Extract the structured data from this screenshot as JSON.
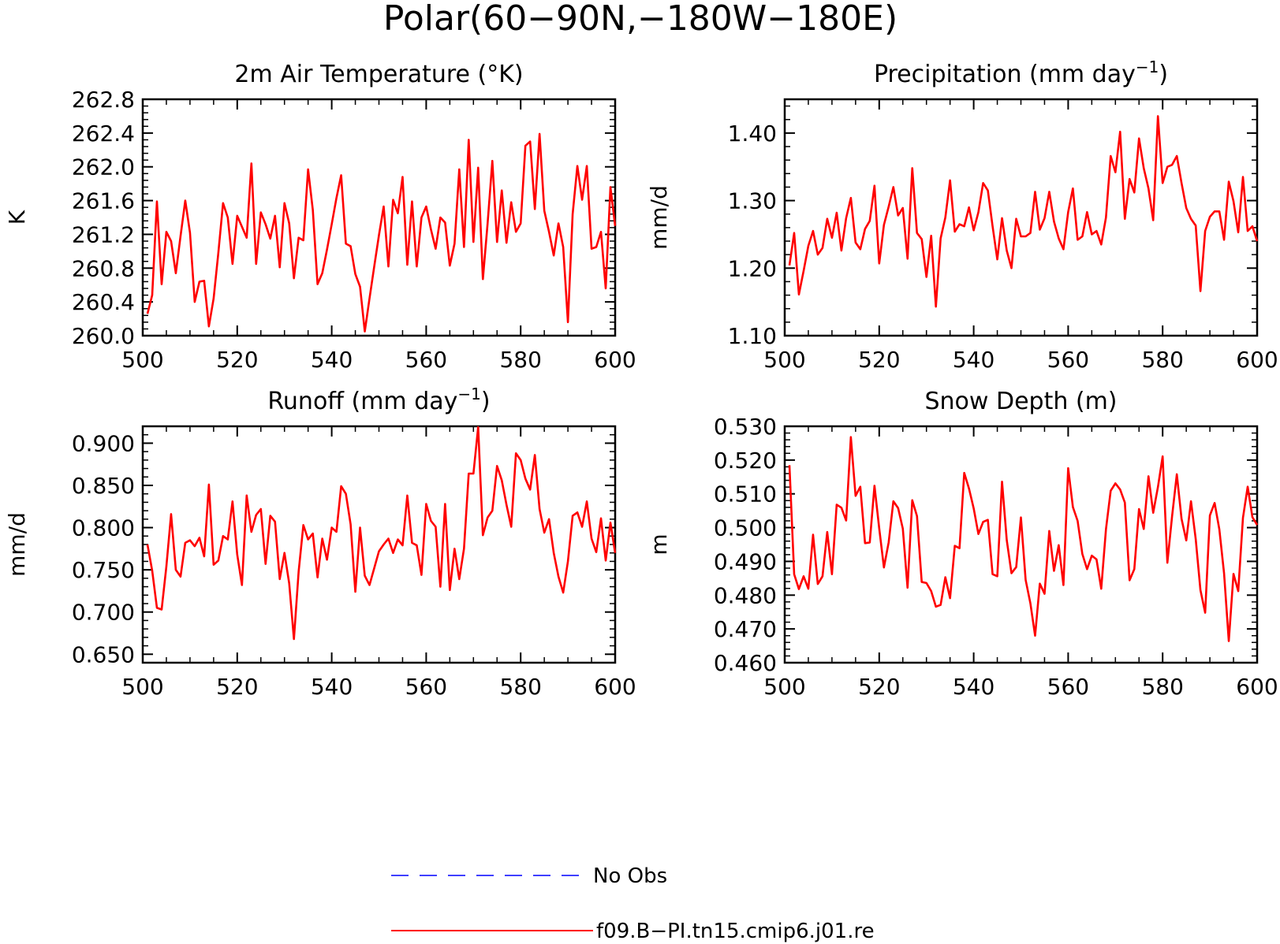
{
  "figure_title": "Polar(60−90N,−180W−180E)",
  "legend": [
    {
      "label": "No Obs",
      "color": "#0000ff",
      "style": "dashed"
    },
    {
      "label": "f09.B−PI.tn15.cmip6.j01.re",
      "color": "#ff0000",
      "style": "solid"
    }
  ],
  "colors": {
    "series": "#ff0000",
    "obs": "#0000ff",
    "axis": "#000000"
  },
  "chart_data": [
    {
      "type": "line",
      "title": "2m Air Temperature (°K)",
      "title_sup": "",
      "title_tail": "",
      "xlabel": "",
      "ylabel": "K",
      "xlim": [
        500,
        600
      ],
      "ylim": [
        260.0,
        262.8
      ],
      "xticks": [
        "500",
        "520",
        "540",
        "560",
        "580",
        "600"
      ],
      "yticks": [
        "260.0",
        "260.4",
        "260.8",
        "261.2",
        "261.6",
        "262.0",
        "262.4",
        "262.8"
      ],
      "ydec": 1,
      "x_start": 501,
      "series": [
        {
          "values": [
            260.26,
            260.48,
            261.59,
            260.61,
            261.23,
            261.12,
            260.74,
            261.18,
            261.6,
            261.22,
            260.4,
            260.64,
            260.65,
            260.11,
            260.44,
            260.98,
            261.57,
            261.4,
            260.85,
            261.42,
            261.29,
            261.16,
            262.04,
            260.85,
            261.46,
            261.32,
            261.15,
            261.42,
            260.81,
            261.57,
            261.33,
            260.68,
            261.16,
            261.13,
            261.97,
            261.49,
            260.61,
            260.74,
            261.02,
            261.32,
            261.63,
            261.9,
            261.09,
            261.06,
            260.73,
            260.58,
            260.05,
            260.44,
            260.82,
            261.19,
            261.53,
            260.82,
            261.61,
            261.45,
            261.88,
            260.84,
            261.59,
            260.82,
            261.4,
            261.53,
            261.26,
            261.03,
            261.4,
            261.34,
            260.83,
            261.09,
            261.97,
            261.05,
            262.32,
            261.11,
            261.99,
            260.67,
            261.33,
            262.07,
            261.11,
            261.72,
            261.1,
            261.58,
            261.23,
            261.33,
            262.25,
            262.3,
            261.5,
            262.39,
            261.48,
            261.23,
            260.95,
            261.33,
            261.05,
            260.16,
            261.44,
            262.01,
            261.61,
            262.01,
            261.03,
            261.05,
            261.23,
            260.56,
            261.76,
            261.3
          ]
        }
      ]
    },
    {
      "type": "line",
      "title": "Precipitation (mm day",
      "title_sup": "−1",
      "title_tail": ")",
      "xlabel": "",
      "ylabel": "mm/d",
      "xlim": [
        500,
        600
      ],
      "ylim": [
        1.1,
        1.45
      ],
      "xticks": [
        "500",
        "520",
        "540",
        "560",
        "580",
        "600"
      ],
      "yticks": [
        "1.10",
        "1.20",
        "1.30",
        "1.40"
      ],
      "ydec": 2,
      "x_start": 501,
      "series": [
        {
          "values": [
            1.204,
            1.252,
            1.161,
            1.196,
            1.233,
            1.255,
            1.22,
            1.23,
            1.273,
            1.245,
            1.282,
            1.226,
            1.274,
            1.304,
            1.238,
            1.228,
            1.258,
            1.27,
            1.322,
            1.207,
            1.264,
            1.291,
            1.32,
            1.278,
            1.289,
            1.214,
            1.348,
            1.252,
            1.243,
            1.187,
            1.248,
            1.143,
            1.244,
            1.275,
            1.33,
            1.254,
            1.265,
            1.262,
            1.29,
            1.256,
            1.283,
            1.326,
            1.315,
            1.262,
            1.213,
            1.274,
            1.226,
            1.2,
            1.273,
            1.247,
            1.247,
            1.252,
            1.313,
            1.257,
            1.274,
            1.313,
            1.269,
            1.244,
            1.228,
            1.283,
            1.318,
            1.242,
            1.247,
            1.283,
            1.25,
            1.255,
            1.235,
            1.275,
            1.366,
            1.342,
            1.402,
            1.273,
            1.332,
            1.312,
            1.392,
            1.348,
            1.318,
            1.271,
            1.425,
            1.326,
            1.35,
            1.353,
            1.366,
            1.326,
            1.289,
            1.273,
            1.263,
            1.166,
            1.255,
            1.276,
            1.284,
            1.284,
            1.242,
            1.328,
            1.299,
            1.253,
            1.335,
            1.255,
            1.262,
            1.24
          ]
        }
      ]
    },
    {
      "type": "line",
      "title": "Runoff (mm day",
      "title_sup": "−1",
      "title_tail": ")",
      "xlabel": "",
      "ylabel": "mm/d",
      "xlim": [
        500,
        600
      ],
      "ylim": [
        0.64,
        0.92
      ],
      "xticks": [
        "500",
        "520",
        "540",
        "560",
        "580",
        "600"
      ],
      "yticks": [
        "0.650",
        "0.700",
        "0.750",
        "0.800",
        "0.850",
        "0.900"
      ],
      "ydec": 3,
      "x_start": 501,
      "series": [
        {
          "values": [
            0.78,
            0.749,
            0.705,
            0.703,
            0.754,
            0.816,
            0.75,
            0.742,
            0.782,
            0.785,
            0.778,
            0.788,
            0.766,
            0.851,
            0.756,
            0.761,
            0.79,
            0.786,
            0.831,
            0.768,
            0.732,
            0.838,
            0.795,
            0.815,
            0.822,
            0.757,
            0.814,
            0.807,
            0.739,
            0.77,
            0.734,
            0.668,
            0.748,
            0.803,
            0.786,
            0.793,
            0.741,
            0.787,
            0.762,
            0.8,
            0.795,
            0.849,
            0.84,
            0.804,
            0.724,
            0.8,
            0.743,
            0.732,
            0.752,
            0.772,
            0.78,
            0.787,
            0.77,
            0.786,
            0.779,
            0.838,
            0.782,
            0.779,
            0.744,
            0.828,
            0.808,
            0.801,
            0.73,
            0.828,
            0.726,
            0.775,
            0.739,
            0.775,
            0.864,
            0.864,
            0.919,
            0.791,
            0.812,
            0.82,
            0.873,
            0.856,
            0.827,
            0.801,
            0.888,
            0.88,
            0.858,
            0.845,
            0.886,
            0.822,
            0.794,
            0.81,
            0.77,
            0.742,
            0.723,
            0.76,
            0.814,
            0.818,
            0.801,
            0.831,
            0.787,
            0.771,
            0.811,
            0.761,
            0.806,
            0.77
          ]
        }
      ]
    },
    {
      "type": "line",
      "title": "Snow Depth (m)",
      "title_sup": "",
      "title_tail": "",
      "xlabel": "",
      "ylabel": "m",
      "xlim": [
        500,
        600
      ],
      "ylim": [
        0.46,
        0.53
      ],
      "xticks": [
        "500",
        "520",
        "540",
        "560",
        "580",
        "600"
      ],
      "yticks": [
        "0.460",
        "0.470",
        "0.480",
        "0.490",
        "0.500",
        "0.510",
        "0.520",
        "0.530"
      ],
      "ydec": 3,
      "x_start": 501,
      "series": [
        {
          "values": [
            0.5185,
            0.4862,
            0.4818,
            0.4856,
            0.4819,
            0.4979,
            0.4833,
            0.4856,
            0.4987,
            0.4862,
            0.5068,
            0.5059,
            0.5021,
            0.5268,
            0.5094,
            0.5121,
            0.4954,
            0.4956,
            0.5124,
            0.4998,
            0.4882,
            0.4956,
            0.5078,
            0.5058,
            0.4997,
            0.4822,
            0.5081,
            0.5034,
            0.4839,
            0.4836,
            0.4812,
            0.4766,
            0.4771,
            0.4853,
            0.4791,
            0.4946,
            0.4939,
            0.5162,
            0.5116,
            0.5057,
            0.4981,
            0.5017,
            0.5023,
            0.4862,
            0.4856,
            0.5136,
            0.4963,
            0.4865,
            0.4883,
            0.503,
            0.4845,
            0.4776,
            0.468,
            0.4834,
            0.4804,
            0.499,
            0.4872,
            0.4948,
            0.483,
            0.5176,
            0.5061,
            0.502,
            0.4922,
            0.4877,
            0.4917,
            0.4906,
            0.4819,
            0.4995,
            0.5109,
            0.5131,
            0.5113,
            0.5074,
            0.4844,
            0.4877,
            0.5055,
            0.4996,
            0.5152,
            0.5044,
            0.512,
            0.5211,
            0.4896,
            0.5034,
            0.5158,
            0.5026,
            0.4962,
            0.5078,
            0.4966,
            0.4815,
            0.4748,
            0.5036,
            0.5073,
            0.4995,
            0.4865,
            0.4664,
            0.4863,
            0.4812,
            0.5029,
            0.5121,
            0.5031,
            0.5008
          ]
        }
      ]
    }
  ]
}
